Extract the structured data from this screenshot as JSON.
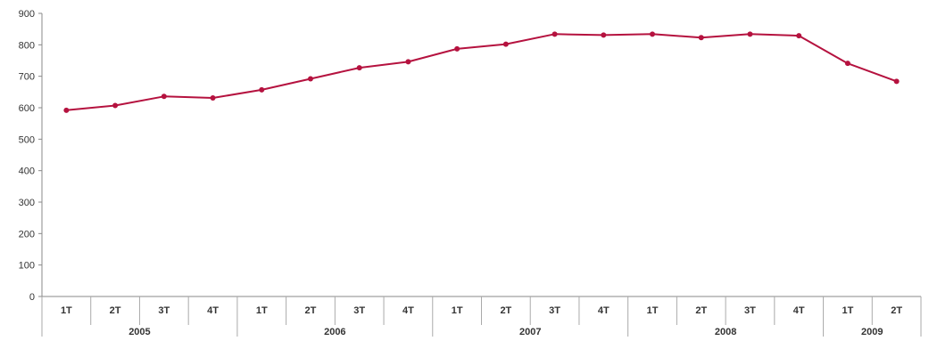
{
  "chart_data": {
    "type": "line",
    "title": "",
    "xlabel": "",
    "ylabel": "",
    "ylim": [
      0,
      900
    ],
    "yticks": [
      0,
      100,
      200,
      300,
      400,
      500,
      600,
      700,
      800,
      900
    ],
    "grid": false,
    "legend": "none",
    "categories": [
      "1T",
      "2T",
      "3T",
      "4T",
      "1T",
      "2T",
      "3T",
      "4T",
      "1T",
      "2T",
      "3T",
      "4T",
      "1T",
      "2T",
      "3T",
      "4T",
      "1T",
      "2T"
    ],
    "groups": [
      {
        "label": "2005",
        "count": 4
      },
      {
        "label": "2006",
        "count": 4
      },
      {
        "label": "2007",
        "count": 4
      },
      {
        "label": "2008",
        "count": 4
      },
      {
        "label": "2009",
        "count": 2
      }
    ],
    "series": [
      {
        "color": "#b5123f",
        "values": [
          592,
          607,
          636,
          631,
          657,
          692,
          727,
          746,
          787,
          802,
          834,
          831,
          834,
          823,
          834,
          829,
          741,
          684
        ]
      }
    ]
  }
}
